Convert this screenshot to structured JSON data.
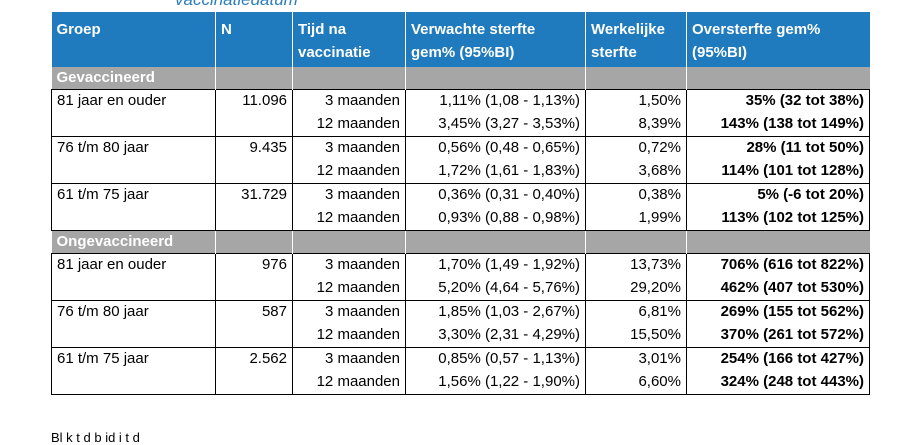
{
  "top_cut_text": "vaccinatiedatum",
  "headers": {
    "groep": "Groep",
    "n": "N",
    "tijd": "Tijd na vaccinatie",
    "verwacht": "Verwachte sterfte gem% (95%BI)",
    "werkelijk": "Werkelijke sterfte",
    "over": "Oversterfte gem% (95%BI)"
  },
  "sections": [
    {
      "label": "Gevaccineerd",
      "groups": [
        {
          "name": "81 jaar en ouder",
          "n": "11.096",
          "tijd": [
            "3 maanden",
            "12 maanden"
          ],
          "verwacht": [
            "1,11% (1,08 - 1,13%)",
            "3,45% (3,27 - 3,53%)"
          ],
          "werkelijk": [
            "1,50%",
            "8,39%"
          ],
          "over": [
            "35% (32 tot 38%)",
            "143% (138 tot 149%)"
          ]
        },
        {
          "name": "76 t/m 80 jaar",
          "n": "9.435",
          "tijd": [
            "3 maanden",
            "12 maanden"
          ],
          "verwacht": [
            "0,56% (0,48 - 0,65%)",
            "1,72% (1,61 - 1,83%)"
          ],
          "werkelijk": [
            "0,72%",
            "3,68%"
          ],
          "over": [
            "28% (11 tot 50%)",
            "114% (101 tot 128%)"
          ]
        },
        {
          "name": "61 t/m 75 jaar",
          "n": "31.729",
          "tijd": [
            "3 maanden",
            "12 maanden"
          ],
          "verwacht": [
            "0,36% (0,31 - 0,40%)",
            "0,93% (0,88 - 0,98%)"
          ],
          "werkelijk": [
            "0,38%",
            "1,99%"
          ],
          "over": [
            "5% (-6 tot 20%)",
            "113% (102 tot 125%)"
          ]
        }
      ]
    },
    {
      "label": "Ongevaccineerd",
      "groups": [
        {
          "name": "81 jaar en ouder",
          "n": "976",
          "tijd": [
            "3 maanden",
            "12 maanden"
          ],
          "verwacht": [
            "1,70% (1,49 - 1,92%)",
            "5,20% (4,64 - 5,76%)"
          ],
          "werkelijk": [
            "13,73%",
            "29,20%"
          ],
          "over": [
            "706% (616 tot 822%)",
            "462% (407 tot 530%)"
          ]
        },
        {
          "name": "76 t/m 80 jaar",
          "n": "587",
          "tijd": [
            "3 maanden",
            "12 maanden"
          ],
          "verwacht": [
            "1,85% (1,03 - 2,67%)",
            "3,30% (2,31 - 4,29%)"
          ],
          "werkelijk": [
            "6,81%",
            "15,50%"
          ],
          "over": [
            "269% (155 tot 562%)",
            "370% (261 tot 572%)"
          ]
        },
        {
          "name": "61 t/m 75 jaar",
          "n": "2.562",
          "tijd": [
            "3 maanden",
            "12 maanden"
          ],
          "verwacht": [
            "0,85% (0,57 - 1,13%)",
            "1,56% (1,22 - 1,90%)"
          ],
          "werkelijk": [
            "3,01%",
            "6,60%"
          ],
          "over": [
            "254% (166 tot 427%)",
            "324% (248 tot 443%)"
          ]
        }
      ]
    }
  ],
  "footer_cut_text": "Bl k t  d   b  id i t  d"
}
